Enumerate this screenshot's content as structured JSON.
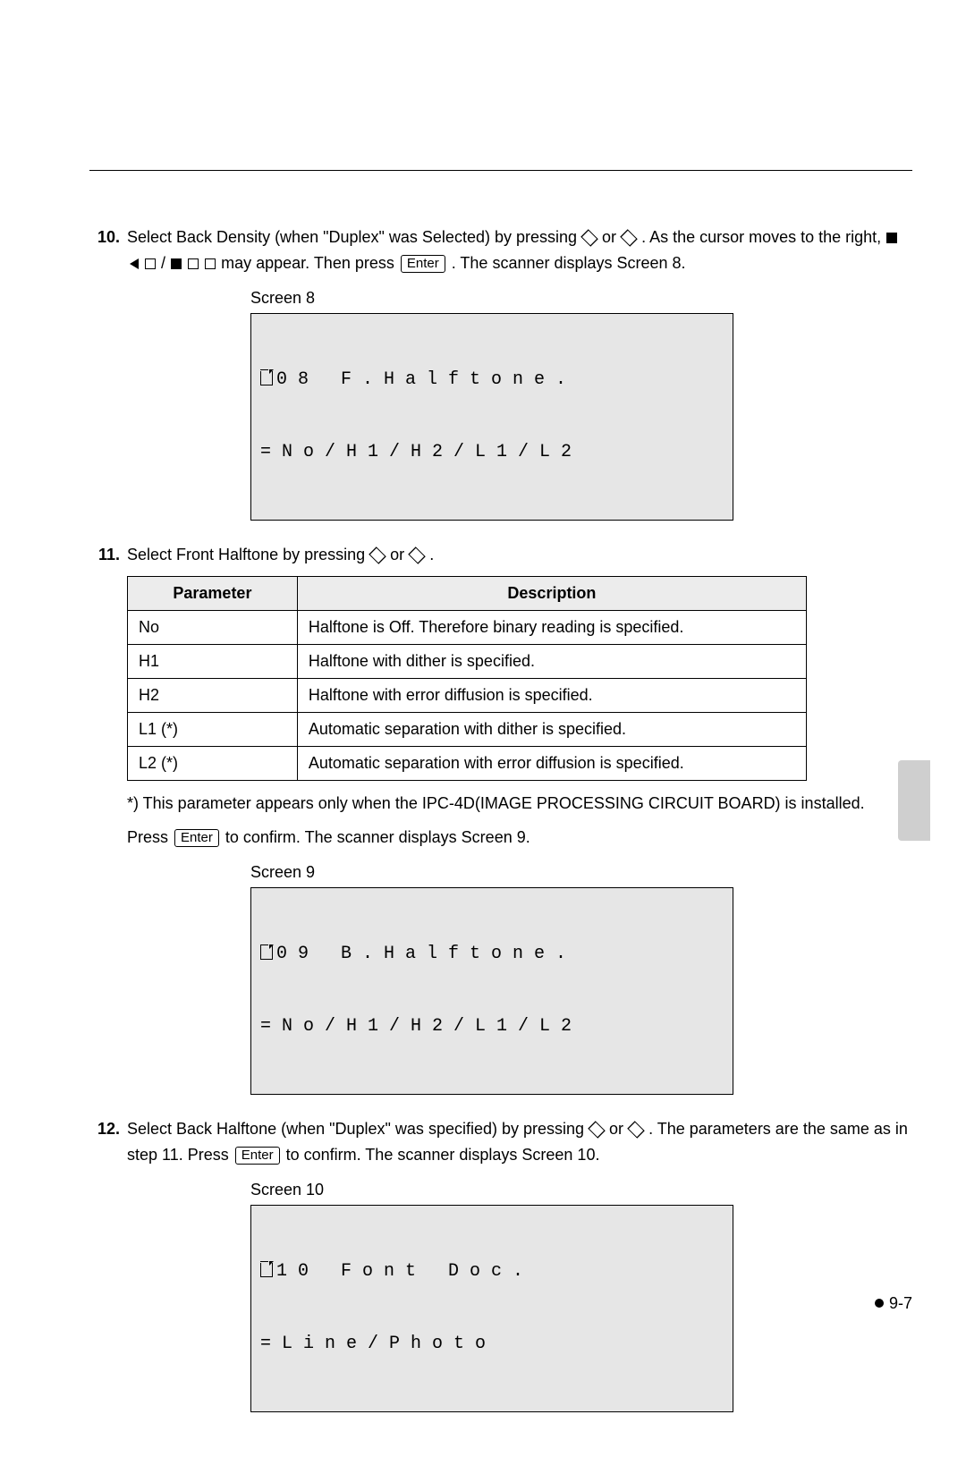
{
  "steps": {
    "s10": {
      "num": "10.",
      "text_a": "Select Back Density (when \"Duplex\" was Selected) by pressing ",
      "text_b": " or ",
      "text_c": " . As the cursor moves to the right, ",
      "text_d": " may appear. Then press ",
      "text_e": " . The scanner displays Screen 8.",
      "enter": "Enter"
    },
    "s11": {
      "num": "11.",
      "text_a": "Select Front Halftone by pressing ",
      "text_b": " or ",
      "text_c": " ."
    },
    "s12": {
      "num": "12.",
      "text_a": "Select Back Halftone (when \"Duplex\" was specified) by pressing ",
      "text_b": " or ",
      "text_c": " . The parameters are the same as in step 11. Press ",
      "text_d": " to confirm. The scanner displays Screen 10.",
      "enter": "Enter"
    }
  },
  "screens": {
    "s8": {
      "label": "Screen 8",
      "line1": "0 8   F . H a l f t o n e .",
      "line2": "= N o / H 1 / H 2 / L 1 / L 2"
    },
    "s9": {
      "label": "Screen 9",
      "line1": "0 9   B . H a l f t o n e .",
      "line2": "= N o / H 1 / H 2 / L 1 / L 2"
    },
    "s10": {
      "label": "Screen 10",
      "line1": "1 0   F o n t   D o c .",
      "line2": "= L i n e / P h o t o"
    }
  },
  "table": {
    "columns": [
      "Parameter",
      "Description"
    ],
    "rows": [
      [
        "No",
        "Halftone is Off. Therefore binary reading is specified."
      ],
      [
        "H1",
        "Halftone with dither is specified."
      ],
      [
        "H2",
        "Halftone with error diffusion is specified."
      ],
      [
        "L1 (*)",
        "Automatic separation with dither is specified."
      ],
      [
        "L2 (*)",
        "Automatic separation with error diffusion is specified."
      ]
    ],
    "col_widths": [
      "190px",
      "570px"
    ]
  },
  "note": "*) This parameter appears only when the IPC-4D(IMAGE PROCESSING CIRCUIT BOARD) is installed.",
  "press_line": {
    "a": "Press ",
    "key": "Enter",
    "b": " to confirm. The scanner displays Screen 9."
  },
  "page_number": "9-7",
  "colors": {
    "lcd_bg": "#e6e6e6",
    "table_header_bg": "#ececec",
    "side_tab_bg": "#cfcfcf",
    "text": "#000000",
    "page_bg": "#ffffff"
  }
}
